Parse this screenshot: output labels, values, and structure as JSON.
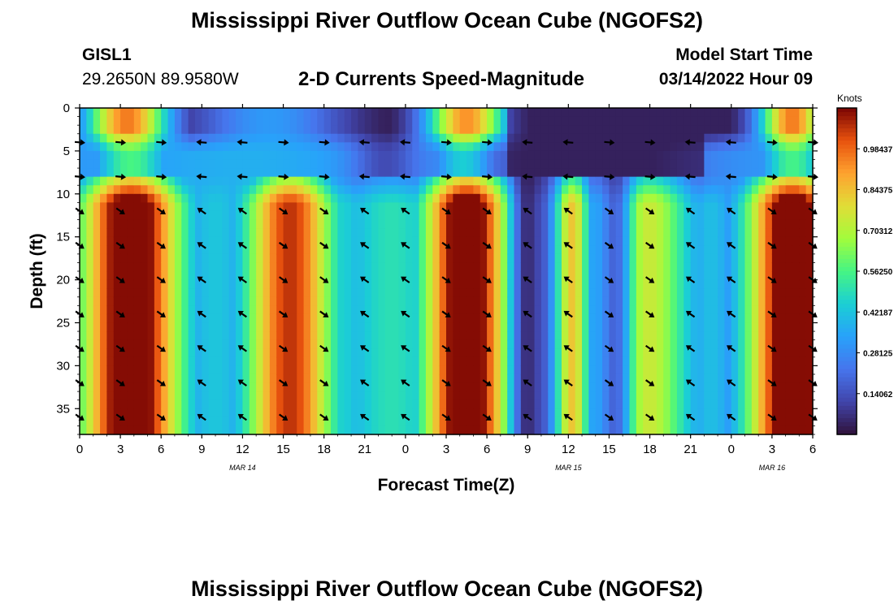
{
  "header": {
    "title": "Mississippi River Outflow Ocean Cube (NGOFS2)",
    "station_id": "GISL1",
    "station_coords": "29.2650N  89.9580W",
    "plot_title": "2-D Currents Speed-Magnitude",
    "model_start_label": "Model Start Time",
    "model_start_value": "03/14/2022 Hour 09"
  },
  "second_title": "Mississippi River Outflow Ocean Cube (NGOFS2)",
  "chart_data": {
    "type": "heatmap",
    "variable": "current speed magnitude with direction vectors",
    "xlabel": "Forecast Time(Z)",
    "ylabel": "Depth (ft)",
    "x_ticks": [
      "0",
      "3",
      "6",
      "9",
      "12",
      "15",
      "18",
      "21",
      "0",
      "3",
      "6",
      "9",
      "12",
      "15",
      "18",
      "21",
      "0",
      "3",
      "6"
    ],
    "x_tick_hours": [
      0,
      3,
      6,
      9,
      12,
      15,
      18,
      21,
      24,
      27,
      30,
      33,
      36,
      39,
      42,
      45,
      48,
      51,
      54
    ],
    "xlim": [
      0,
      54
    ],
    "date_labels": [
      {
        "text": "MAR 14",
        "hour": 12
      },
      {
        "text": "MAR 15",
        "hour": 36
      },
      {
        "text": "MAR 16",
        "hour": 51
      }
    ],
    "y_ticks": [
      "0",
      "5",
      "10",
      "15",
      "20",
      "25",
      "30",
      "35"
    ],
    "y_tick_values": [
      0,
      5,
      10,
      15,
      20,
      25,
      30,
      35
    ],
    "ylim": [
      0,
      38
    ],
    "colorbar": {
      "unit": "Knots",
      "range": [
        0.0,
        1.125
      ],
      "tick_values": [
        0.14062,
        0.28125,
        0.42187,
        0.5625,
        0.70312,
        0.84375,
        0.98437
      ],
      "tick_labels": [
        "0.14062",
        "0.28125",
        "0.42187",
        "0.56250",
        "0.70312",
        "0.84375",
        "0.98437"
      ],
      "colormap": "turbo"
    },
    "arrow_columns_hours": [
      0,
      3,
      6,
      9,
      12,
      15,
      18,
      21,
      24,
      27,
      30,
      33,
      36,
      39,
      42,
      45,
      48,
      51,
      54
    ],
    "arrow_depths_ft": [
      4,
      8,
      12,
      16,
      20,
      24,
      28,
      32,
      36
    ]
  }
}
